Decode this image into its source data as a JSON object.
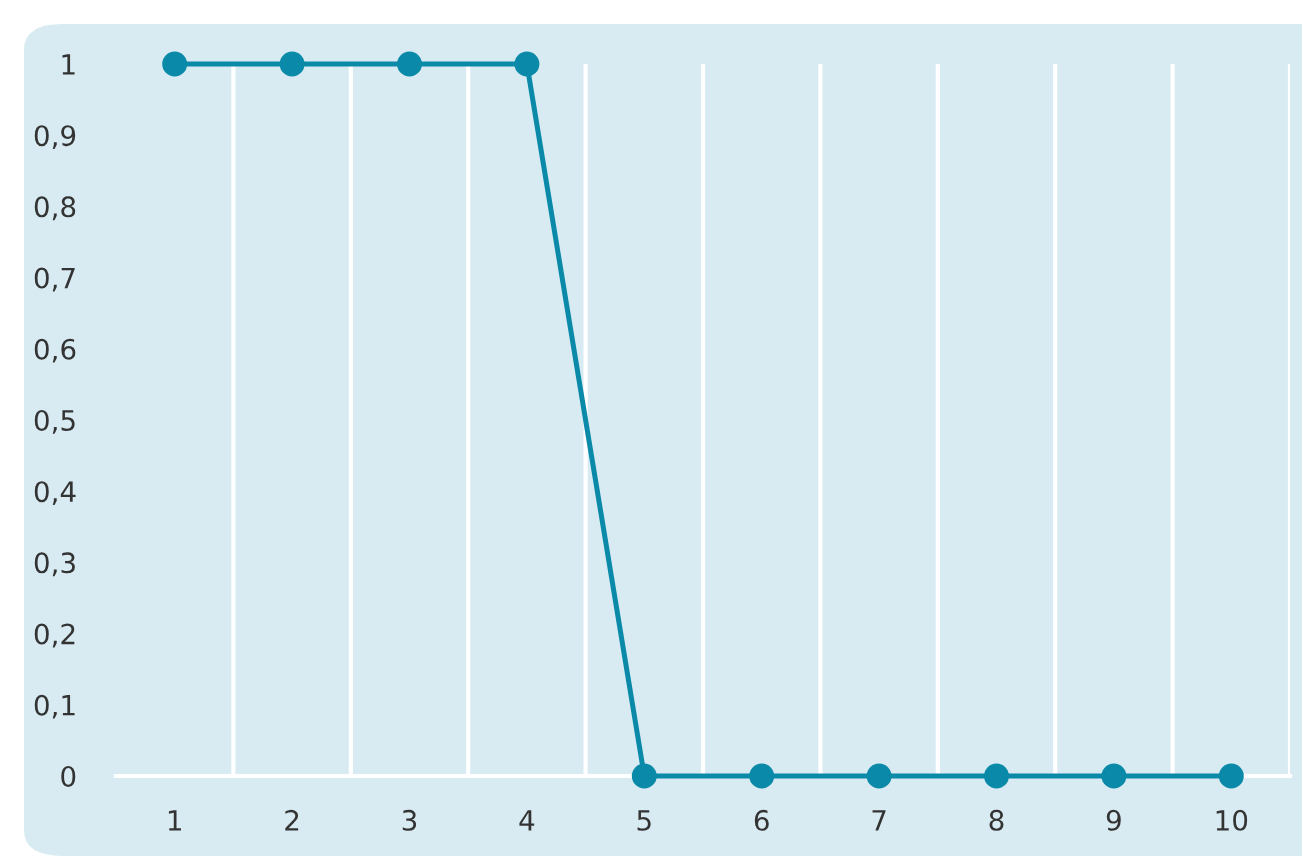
{
  "chart_data": {
    "type": "line",
    "categories": [
      "1",
      "2",
      "3",
      "4",
      "5",
      "6",
      "7",
      "8",
      "9",
      "10"
    ],
    "series": [
      {
        "color": "#0a8aa8",
        "values": [
          1,
          1,
          1,
          1,
          0,
          0,
          0,
          0,
          0,
          0
        ]
      }
    ],
    "ylim": [
      0,
      1
    ],
    "yticks": [
      0,
      {
        "value": 0.1,
        "label": "0,1"
      },
      {
        "value": 0.2,
        "label": "0,2"
      },
      {
        "value": 0.3,
        "label": "0,3"
      },
      {
        "value": 0.4,
        "label": "0,4"
      },
      {
        "value": 0.5,
        "label": "0,5"
      },
      {
        "value": 0.6,
        "label": "0,6"
      },
      {
        "value": 0.7,
        "label": "0,7"
      },
      {
        "value": 0.8,
        "label": "0,8"
      },
      {
        "value": 0.9,
        "label": "0,9"
      },
      1
    ],
    "grid": "x",
    "marker": "circle",
    "line_style": "solid"
  }
}
